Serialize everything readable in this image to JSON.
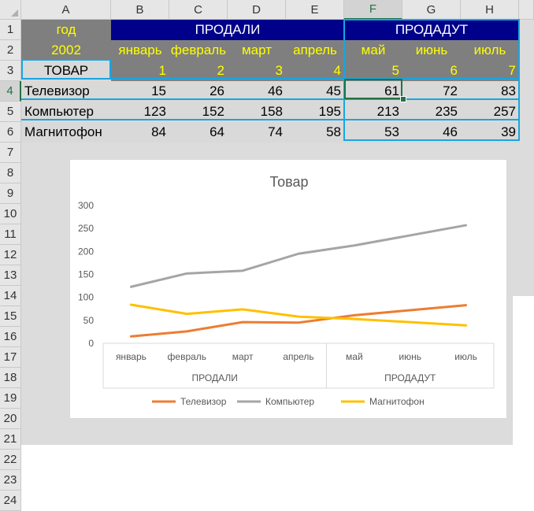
{
  "columns": [
    "A",
    "B",
    "C",
    "D",
    "E",
    "F",
    "G",
    "H"
  ],
  "rows": [
    "1",
    "2",
    "3",
    "4",
    "5",
    "6",
    "7",
    "8",
    "9",
    "10",
    "11",
    "12",
    "13",
    "14",
    "15",
    "16",
    "17",
    "18",
    "19",
    "20",
    "21",
    "22",
    "23",
    "24"
  ],
  "header": {
    "year_label": "год",
    "year_value": "2002",
    "item_label": "ТОВАР",
    "sold_label": "ПРОДАЛИ",
    "will_sell_label": "ПРОДАДУТ",
    "months": [
      "январь",
      "февраль",
      "март",
      "апрель",
      "май",
      "июнь",
      "июль"
    ],
    "month_numbers": [
      "1",
      "2",
      "3",
      "4",
      "5",
      "6",
      "7"
    ]
  },
  "table": [
    {
      "name": "Телевизор",
      "values": [
        "15",
        "26",
        "46",
        "45",
        "61",
        "72",
        "83"
      ]
    },
    {
      "name": "Компьютер",
      "values": [
        "123",
        "152",
        "158",
        "195",
        "213",
        "235",
        "257"
      ]
    },
    {
      "name": "Магнитофон",
      "values": [
        "84",
        "64",
        "74",
        "58",
        "53",
        "46",
        "39"
      ]
    }
  ],
  "colors": {
    "header_gray": "#7f7f7f",
    "header_navy": "#00008b",
    "header_yellow": "#ffff00",
    "row_gray": "#d9d9d9",
    "border_blue": "#18a6e0"
  },
  "chart_data": {
    "type": "line",
    "title": "Товар",
    "categories": [
      "январь",
      "февраль",
      "март",
      "апрель",
      "май",
      "июнь",
      "июль"
    ],
    "groups": [
      {
        "label": "ПРОДАЛИ",
        "count": 4
      },
      {
        "label": "ПРОДАДУТ",
        "count": 3
      }
    ],
    "ylim": [
      0,
      300
    ],
    "yticks": [
      "0",
      "50",
      "100",
      "150",
      "200",
      "250",
      "300"
    ],
    "grid": false,
    "legend_position": "bottom",
    "series": [
      {
        "name": "Телевизор",
        "color": "#ed7d31",
        "values": [
          15,
          26,
          46,
          45,
          61,
          72,
          83
        ]
      },
      {
        "name": "Компьютер",
        "color": "#a5a5a5",
        "values": [
          123,
          152,
          158,
          195,
          213,
          235,
          257
        ]
      },
      {
        "name": "Магнитофон",
        "color": "#ffc000",
        "values": [
          84,
          64,
          74,
          58,
          53,
          46,
          39
        ]
      }
    ]
  }
}
